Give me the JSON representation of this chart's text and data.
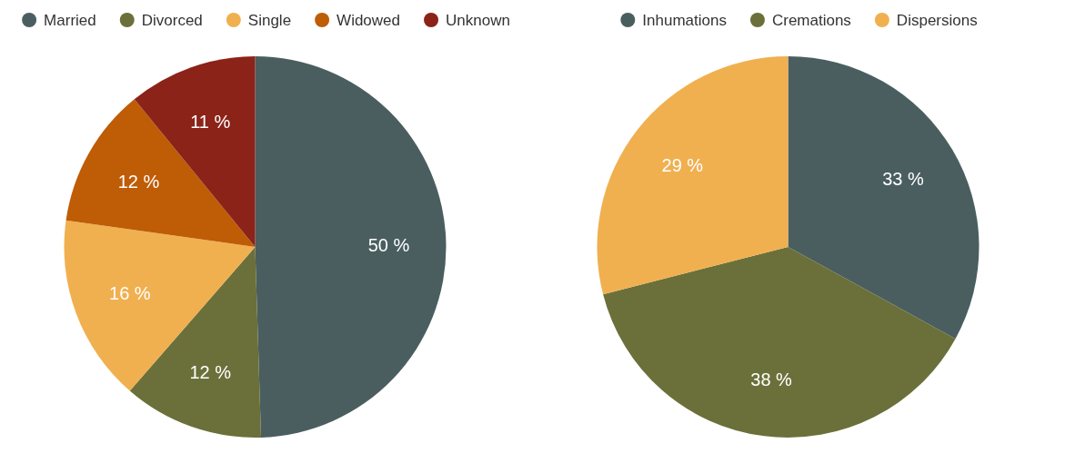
{
  "chart_data": [
    {
      "type": "pie",
      "categories": [
        "Married",
        "Divorced",
        "Single",
        "Widowed",
        "Unknown"
      ],
      "values": [
        50,
        12,
        16,
        12,
        11
      ],
      "value_labels": [
        "50 %",
        "12 %",
        "16 %",
        "12 %",
        "11 %"
      ],
      "colors": [
        "#4a5e60",
        "#6b703a",
        "#f0b050",
        "#bf5c06",
        "#8b2318"
      ],
      "legend": "top"
    },
    {
      "type": "pie",
      "categories": [
        "Inhumations",
        "Cremations",
        "Dispersions"
      ],
      "values": [
        33,
        38,
        29
      ],
      "value_labels": [
        "33 %",
        "38 %",
        "29 %"
      ],
      "colors": [
        "#4a5e60",
        "#6b703a",
        "#f0b050"
      ],
      "legend": "top"
    }
  ]
}
